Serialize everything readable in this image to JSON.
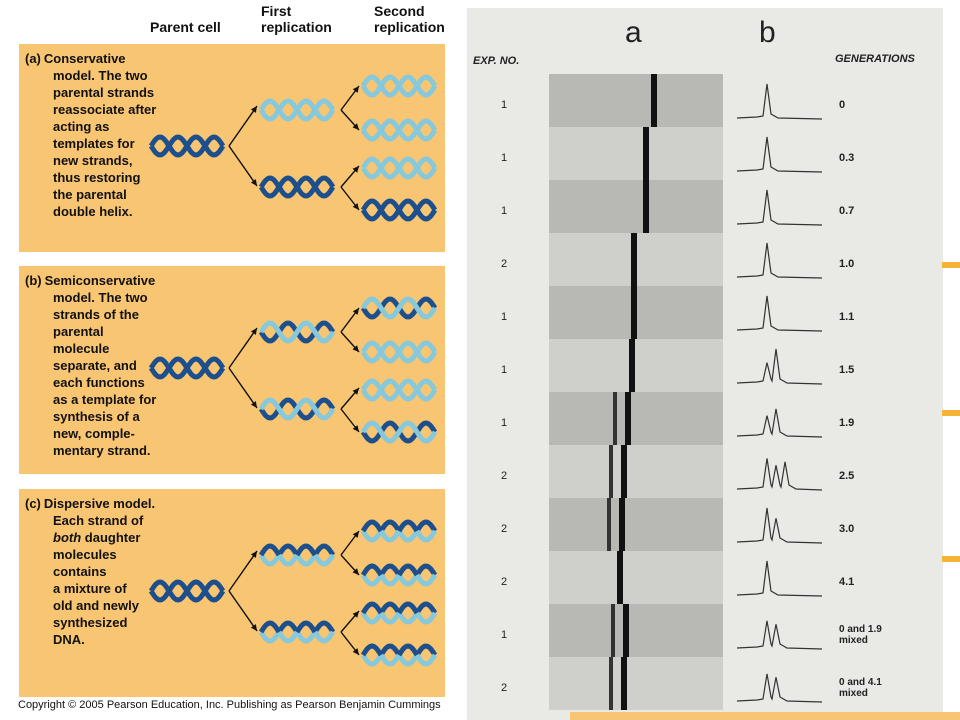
{
  "column_headers": {
    "parent": "Parent cell",
    "first": [
      "First",
      "replication"
    ],
    "second": [
      "Second",
      "replication"
    ]
  },
  "models": [
    {
      "tag": "(a)",
      "lines": [
        "Conservative",
        "model. The two",
        "parental strands",
        "reassociate after",
        "acting as",
        "templates for",
        "new strands,",
        "thus restoring",
        "the parental",
        "double helix."
      ],
      "first_gen": [
        "light",
        "dark"
      ],
      "second_gen": [
        "light",
        "light",
        "light",
        "dark"
      ]
    },
    {
      "tag": "(b)",
      "lines": [
        "Semiconservative",
        "model. The two",
        "strands of the",
        "parental",
        "molecule",
        "separate, and",
        "each functions",
        "as a template for",
        "synthesis of a",
        "new, comple-",
        "mentary strand."
      ],
      "first_gen": [
        "hybrid",
        "hybrid"
      ],
      "second_gen": [
        "hybrid",
        "light",
        "light",
        "hybrid"
      ]
    },
    {
      "tag": "(c)",
      "lines": [
        "Dispersive model.",
        "Each strand of",
        "[both] daughter",
        "molecules",
        "contains",
        "a mixture of",
        "old and newly",
        "synthesized",
        "DNA."
      ],
      "first_gen": [
        "mixed",
        "mixed"
      ],
      "second_gen": [
        "mixed",
        "mixed",
        "mixed",
        "mixed"
      ]
    }
  ],
  "photo": {
    "col_a": "a",
    "col_b": "b",
    "exp_header": "EXP. NO.",
    "gen_header": "GENERATIONS",
    "rows": [
      {
        "exp": "1",
        "gen": [
          "0"
        ]
      },
      {
        "exp": "1",
        "gen": [
          "0.3"
        ]
      },
      {
        "exp": "1",
        "gen": [
          "0.7"
        ]
      },
      {
        "exp": "2",
        "gen": [
          "1.0"
        ]
      },
      {
        "exp": "1",
        "gen": [
          "1.1"
        ]
      },
      {
        "exp": "1",
        "gen": [
          "1.5"
        ]
      },
      {
        "exp": "1",
        "gen": [
          "1.9"
        ]
      },
      {
        "exp": "2",
        "gen": [
          "2.5"
        ]
      },
      {
        "exp": "2",
        "gen": [
          "3.0"
        ]
      },
      {
        "exp": "2",
        "gen": [
          "4.1"
        ]
      },
      {
        "exp": "1",
        "gen": [
          "0 and 1.9",
          "mixed"
        ]
      },
      {
        "exp": "2",
        "gen": [
          "0 and 4.1",
          "mixed"
        ]
      }
    ]
  },
  "copyright": "Copyright © 2005 Pearson Education, Inc. Publishing as Pearson Benjamin Cummings",
  "colors": {
    "panel": "#f8c572",
    "dark_strand": "#1d4f8c",
    "light_strand": "#86c8dc"
  },
  "icons": {
    "helix": "double-helix-icon",
    "arrow": "branch-arrow-icon"
  }
}
